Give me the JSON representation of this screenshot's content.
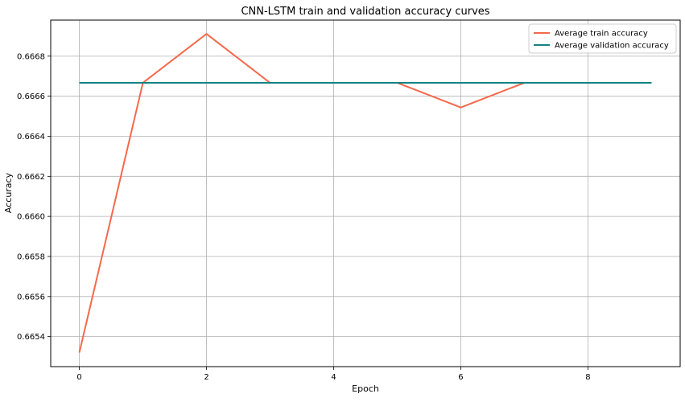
{
  "chart_data": {
    "type": "line",
    "title": "CNN-LSTM train and validation accuracy curves",
    "xlabel": "Epoch",
    "ylabel": "Accuracy",
    "x": [
      0,
      1,
      2,
      3,
      4,
      5,
      6,
      7,
      8,
      9
    ],
    "xlim": [
      -0.45,
      9.45
    ],
    "ylim": [
      0.66525,
      0.66698
    ],
    "xticks": [
      0,
      2,
      4,
      6,
      8
    ],
    "yticks": [
      0.6654,
      0.6656,
      0.6658,
      0.666,
      0.6662,
      0.6664,
      0.6666,
      0.6668
    ],
    "xtick_labels": [
      "0",
      "2",
      "4",
      "6",
      "8"
    ],
    "ytick_labels": [
      "0.6654",
      "0.6656",
      "0.6658",
      "0.6660",
      "0.6662",
      "0.6664",
      "0.6666",
      "0.6668"
    ],
    "grid": true,
    "legend_position": "top-right",
    "series": [
      {
        "name": "Average train accuracy",
        "color": "#f4694b",
        "values": [
          0.66532,
          0.666667,
          0.666911,
          0.666667,
          0.666667,
          0.666667,
          0.666544,
          0.666667,
          0.666667,
          0.666667
        ]
      },
      {
        "name": "Average validation accuracy",
        "color": "#128383",
        "values": [
          0.666667,
          0.666667,
          0.666667,
          0.666667,
          0.666667,
          0.666667,
          0.666667,
          0.666667,
          0.666667,
          0.666667
        ]
      }
    ]
  }
}
